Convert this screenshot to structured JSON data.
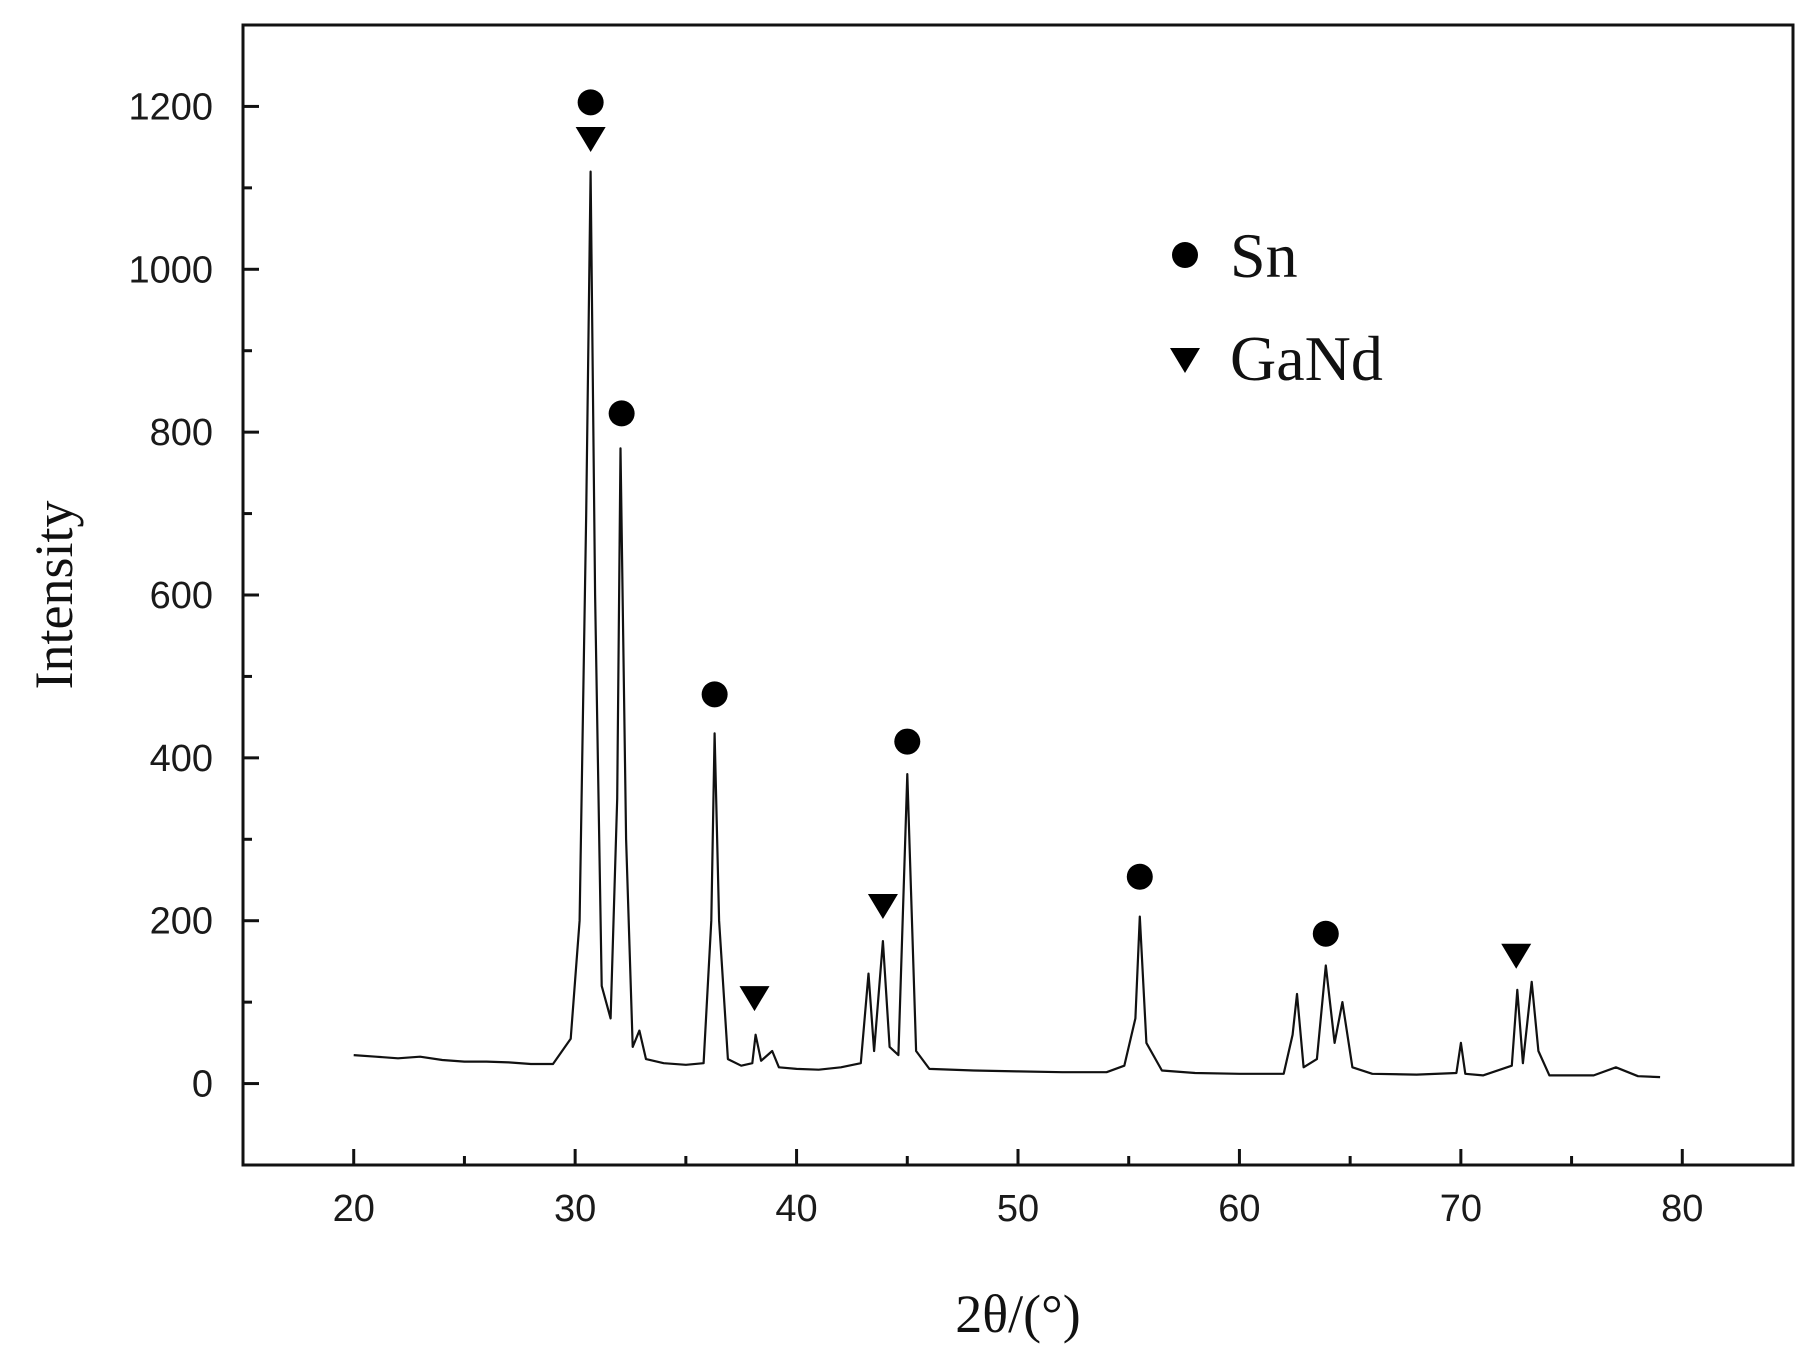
{
  "chart_data": {
    "type": "line",
    "title": "",
    "xlabel": "2θ/(°)",
    "ylabel": "Intensity",
    "xlim": [
      15,
      85
    ],
    "ylim": [
      -100,
      1300
    ],
    "xticks": [
      20,
      30,
      40,
      50,
      60,
      70,
      80
    ],
    "xtick_labels": [
      "20",
      "30",
      "40",
      "50",
      "60",
      "70",
      "80"
    ],
    "yticks": [
      0,
      200,
      400,
      600,
      800,
      1000,
      1200
    ],
    "ytick_labels": [
      "0",
      "200",
      "400",
      "600",
      "800",
      "1000",
      "1200"
    ],
    "grid": false,
    "legend_position": "top-right",
    "line_color": "#111111",
    "series": [
      {
        "x": [
          20,
          21,
          22,
          23,
          24,
          25,
          26,
          27,
          28,
          29,
          29.8,
          30.2,
          30.5,
          30.7,
          30.9,
          31.2,
          31.6,
          31.9,
          32.05,
          32.3,
          32.6,
          32.9,
          33.2,
          34,
          35,
          35.8,
          36.15,
          36.3,
          36.5,
          36.9,
          37.5,
          38,
          38.15,
          38.4,
          38.9,
          39.2,
          40,
          41,
          42,
          42.9,
          43.25,
          43.5,
          43.9,
          44.2,
          44.6,
          45.0,
          45.4,
          46,
          48,
          50,
          52,
          54,
          54.8,
          55.3,
          55.5,
          55.8,
          56.5,
          58,
          60,
          62,
          62.4,
          62.6,
          62.9,
          63.5,
          63.9,
          64.3,
          64.65,
          65.1,
          66,
          68,
          69.8,
          70.0,
          70.2,
          71,
          72.3,
          72.55,
          72.8,
          73.2,
          73.5,
          74,
          75,
          76,
          77,
          78,
          79
        ],
        "y": [
          35,
          33,
          31,
          33,
          29,
          27,
          27,
          26,
          24,
          24,
          55,
          200,
          700,
          1120,
          600,
          120,
          80,
          350,
          780,
          300,
          45,
          65,
          30,
          25,
          23,
          25,
          200,
          430,
          200,
          30,
          22,
          25,
          60,
          28,
          40,
          20,
          18,
          17,
          20,
          25,
          135,
          40,
          175,
          45,
          35,
          380,
          40,
          18,
          16,
          15,
          14,
          14,
          22,
          80,
          205,
          50,
          16,
          13,
          12,
          12,
          60,
          110,
          20,
          30,
          145,
          50,
          100,
          20,
          12,
          11,
          13,
          50,
          12,
          10,
          22,
          115,
          25,
          125,
          40,
          10,
          10,
          10,
          20,
          9,
          8
        ]
      }
    ],
    "markers": {
      "Sn": [
        {
          "x": 30.7,
          "y": 1205
        },
        {
          "x": 32.1,
          "y": 823
        },
        {
          "x": 36.3,
          "y": 478
        },
        {
          "x": 45.0,
          "y": 420
        },
        {
          "x": 55.5,
          "y": 254
        },
        {
          "x": 63.9,
          "y": 184
        }
      ],
      "GaNd": [
        {
          "x": 30.7,
          "y": 1160
        },
        {
          "x": 38.1,
          "y": 105
        },
        {
          "x": 43.9,
          "y": 218
        },
        {
          "x": 72.5,
          "y": 157
        }
      ]
    },
    "legend": [
      {
        "label": "Sn",
        "marker": "circle"
      },
      {
        "label": "GaNd",
        "marker": "triangle-down"
      }
    ]
  }
}
